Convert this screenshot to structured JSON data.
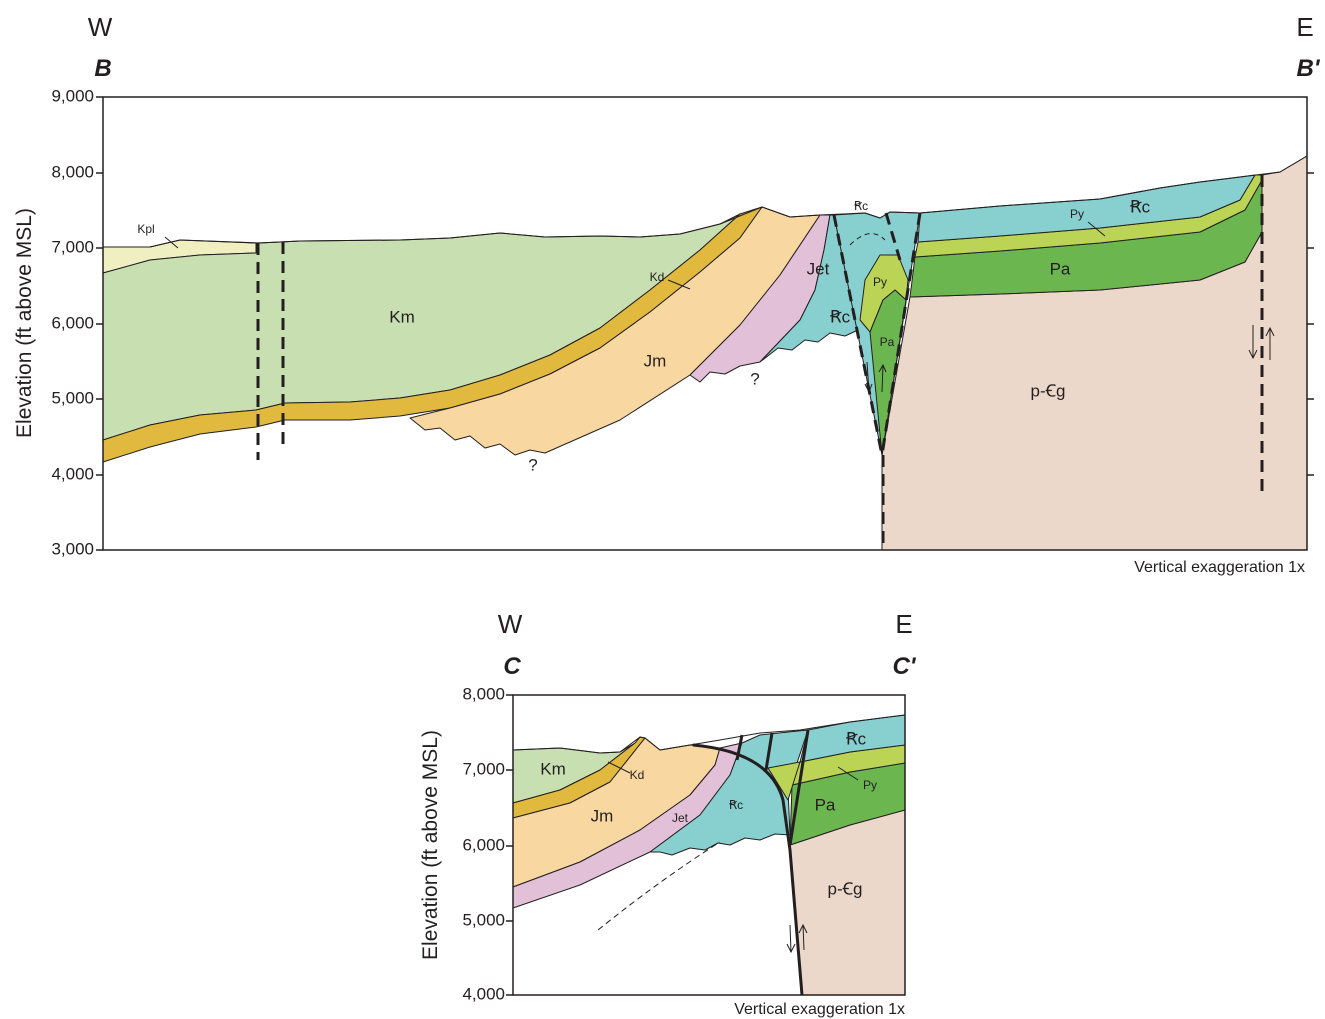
{
  "sections": [
    {
      "west": "W",
      "east": "E",
      "start": "B",
      "end": "B'",
      "axis_title": "Elevation (ft above MSL)",
      "ticks": [
        "9,000",
        "8,000",
        "7,000",
        "6,000",
        "5,000",
        "4,000",
        "3,000"
      ],
      "units": [
        "Kpl",
        "Km",
        "Kd",
        "Jm",
        "Jet",
        "Ꞧc",
        "Ꞧc",
        "Py",
        "Pa",
        "Py",
        "Ꞧc",
        "Pa",
        "p-Ꞓg"
      ],
      "queries": [
        "?",
        "?"
      ],
      "note": "Vertical exaggeration 1x"
    },
    {
      "west": "W",
      "east": "E",
      "start": "C",
      "end": "C'",
      "axis_title": "Elevation (ft above MSL)",
      "ticks": [
        "8,000",
        "7,000",
        "6,000",
        "5,000",
        "4,000"
      ],
      "units": [
        "Km",
        "Kd",
        "Jm",
        "Jet",
        "Ꞧc",
        "Ꞧc",
        "Py",
        "Pa",
        "p-Ꞓg"
      ],
      "note": "Vertical exaggeration 1x"
    }
  ]
}
